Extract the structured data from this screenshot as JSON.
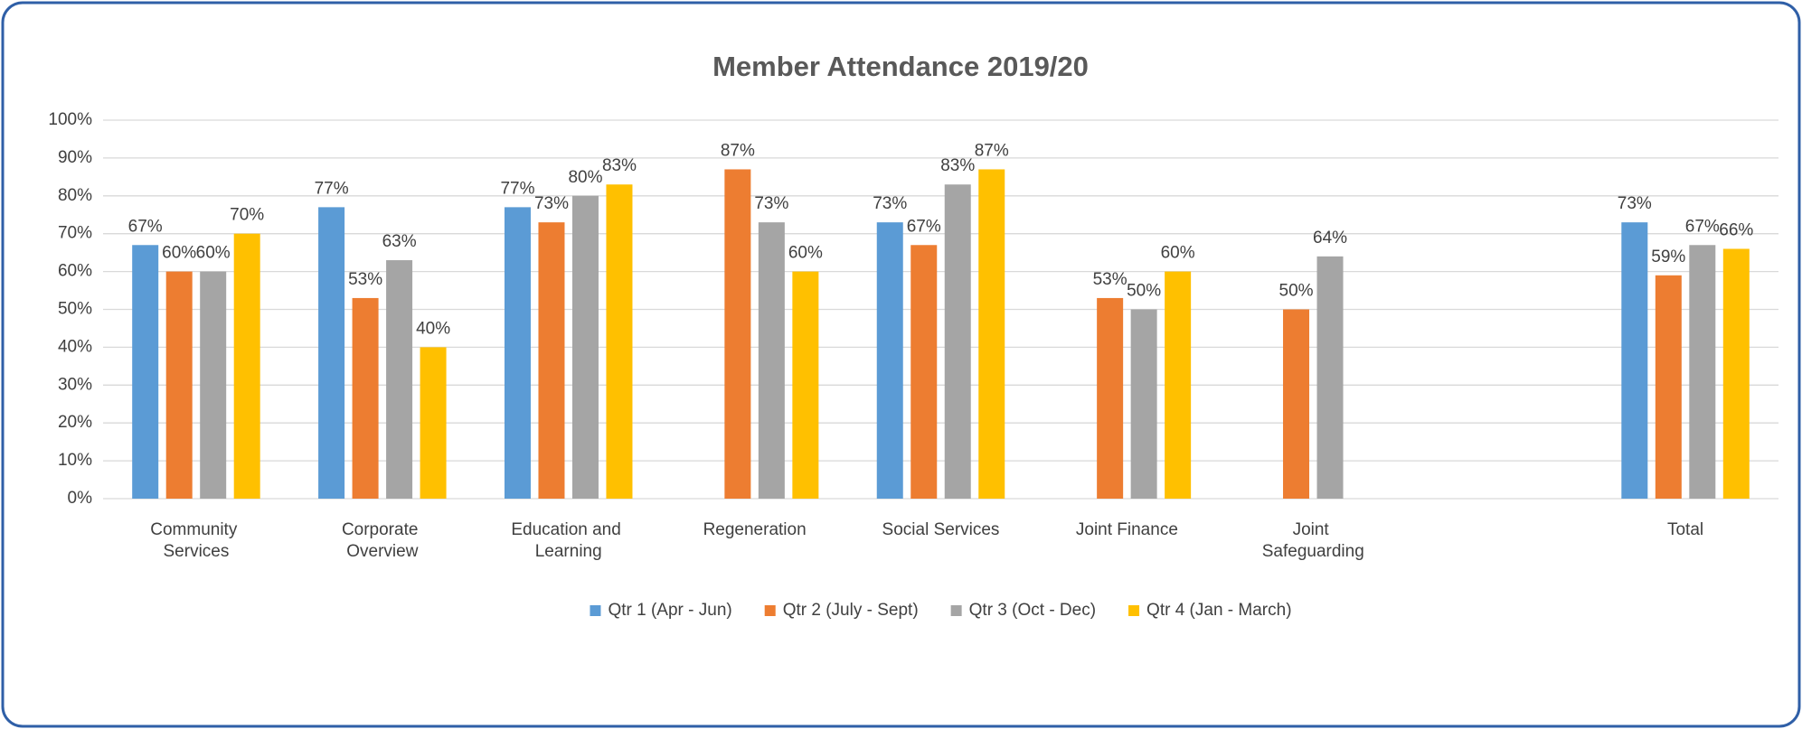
{
  "chart_data": {
    "type": "bar",
    "title": "Member Attendance 2019/20",
    "categories": [
      "Community Services",
      "Corporate Overview",
      "Education and Learning",
      "Regeneration",
      "Social Services",
      "Joint Finance",
      "Joint Safeguarding",
      null,
      "Total"
    ],
    "series": [
      {
        "name": "Qtr 1 (Apr - Jun)",
        "color": "#5b9bd5",
        "values": [
          67,
          77,
          77,
          null,
          73,
          null,
          null,
          null,
          73
        ],
        "value_labels": [
          "67%",
          "77%",
          "77%",
          null,
          "73%",
          null,
          null,
          null,
          "73%"
        ]
      },
      {
        "name": "Qtr 2 (July - Sept)",
        "color": "#ed7d31",
        "values": [
          60,
          53,
          73,
          87,
          67,
          53,
          50,
          null,
          59
        ],
        "value_labels": [
          "60%",
          "53%",
          "73%",
          "87%",
          "67%",
          "53%",
          "50%",
          null,
          "59%"
        ]
      },
      {
        "name": "Qtr 3 (Oct - Dec)",
        "color": "#a5a5a5",
        "values": [
          60,
          63,
          80,
          73,
          83,
          50,
          64,
          null,
          67
        ],
        "value_labels": [
          "60%",
          "63%",
          "80%",
          "73%",
          "83%",
          "50%",
          "64%",
          null,
          "67%"
        ]
      },
      {
        "name": "Qtr 4 (Jan - March)",
        "color": "#ffc000",
        "values": [
          70,
          40,
          83,
          60,
          87,
          60,
          null,
          null,
          66
        ],
        "value_labels": [
          "70%",
          "40%",
          "83%",
          "60%",
          "87%",
          "60%",
          null,
          null,
          "66%"
        ]
      }
    ],
    "ylim": [
      0,
      100
    ],
    "yticks": [
      {
        "value": 0,
        "label": "0%"
      },
      {
        "value": 10,
        "label": "10%"
      },
      {
        "value": 20,
        "label": "20%"
      },
      {
        "value": 30,
        "label": "30%"
      },
      {
        "value": 40,
        "label": "40%"
      },
      {
        "value": 50,
        "label": "50%"
      },
      {
        "value": 60,
        "label": "60%"
      },
      {
        "value": 70,
        "label": "70%"
      },
      {
        "value": 80,
        "label": "80%"
      },
      {
        "value": 90,
        "label": "90%"
      },
      {
        "value": 100,
        "label": "100%"
      }
    ],
    "grid": true,
    "legend": "bottom"
  }
}
